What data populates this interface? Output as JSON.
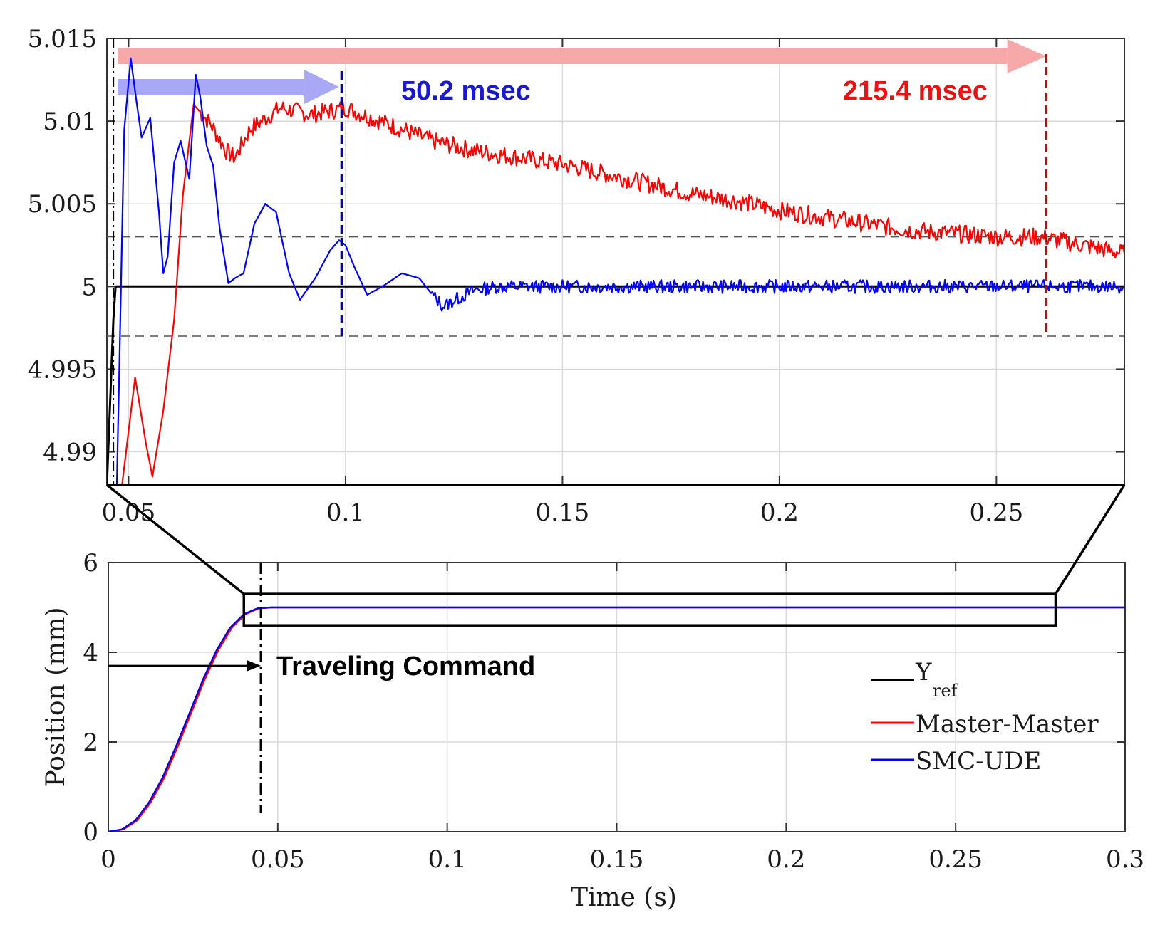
{
  "chart_data": [
    {
      "id": "zoom",
      "type": "line",
      "xlim": [
        0.045,
        0.2795
      ],
      "ylim": [
        4.988,
        5.015
      ],
      "x_ticks": [
        0.05,
        0.1,
        0.15,
        0.2,
        0.25
      ],
      "x_tick_labels": [
        "0.05",
        "0.1",
        "0.15",
        "0.2",
        "0.25"
      ],
      "y_ticks": [
        4.99,
        4.995,
        5,
        5.005,
        5.01,
        5.015
      ],
      "y_tick_labels": [
        "4.99",
        "4.995",
        "5",
        "5.005",
        "5.01",
        "5.015"
      ],
      "grid": true,
      "band_lines": [
        4.997,
        5.003
      ],
      "series": [
        {
          "name": "Yref",
          "color": "#000000",
          "x": [
            0.045,
            0.0465,
            0.047,
            0.048,
            0.2795
          ],
          "y": [
            4.988,
            4.998,
            5.0,
            5.0,
            5.0
          ]
        },
        {
          "name": "Master-Master",
          "color": "#ff0000",
          "x": [
            0.0485,
            0.0515,
            0.054,
            0.0555,
            0.058,
            0.0605,
            0.0625,
            0.065,
            0.069,
            0.0725,
            0.0745,
            0.078,
            0.085,
            0.092,
            0.1,
            0.11,
            0.12,
            0.13,
            0.14,
            0.15,
            0.16,
            0.17,
            0.18,
            0.19,
            0.2,
            0.21,
            0.22,
            0.23,
            0.24,
            0.25,
            0.26,
            0.27,
            0.2795
          ],
          "y": [
            4.988,
            4.9945,
            4.9905,
            4.9885,
            4.9925,
            4.998,
            5.0055,
            5.011,
            5.0098,
            5.0082,
            5.0078,
            5.0095,
            5.0108,
            5.0104,
            5.0108,
            5.0098,
            5.0088,
            5.0082,
            5.0078,
            5.0074,
            5.0068,
            5.0062,
            5.0056,
            5.0052,
            5.0046,
            5.0042,
            5.0038,
            5.0034,
            5.0032,
            5.003,
            5.003,
            5.0025,
            5.002
          ]
        },
        {
          "name": "SMC-UDE",
          "color": "#0000ff",
          "x": [
            0.0473,
            0.049,
            0.0505,
            0.0515,
            0.053,
            0.055,
            0.057,
            0.058,
            0.059,
            0.0605,
            0.062,
            0.064,
            0.0655,
            0.0665,
            0.068,
            0.0695,
            0.071,
            0.073,
            0.0745,
            0.0765,
            0.079,
            0.0815,
            0.084,
            0.087,
            0.0895,
            0.093,
            0.0965,
            0.0985,
            0.1,
            0.102,
            0.105,
            0.1085,
            0.113,
            0.117,
            0.12,
            0.1225,
            0.126,
            0.13,
            0.135,
            0.14,
            0.15,
            0.2795
          ],
          "y": [
            4.988,
            5.0095,
            5.0138,
            5.0118,
            5.009,
            5.0102,
            5.0045,
            5.0008,
            5.0018,
            5.0075,
            5.0088,
            5.0065,
            5.0128,
            5.0115,
            5.0085,
            5.0073,
            5.0035,
            5.0002,
            5.0005,
            5.0008,
            5.0038,
            5.005,
            5.0045,
            5.0008,
            4.9992,
            5.0005,
            5.0022,
            5.0028,
            5.0025,
            5.0012,
            4.9995,
            5.0,
            5.0008,
            5.0005,
            4.9995,
            4.9988,
            4.9993,
            4.9998,
            5.0,
            5.0,
            5.0,
            5.0
          ]
        }
      ],
      "markers": [
        {
          "x": 0.0465,
          "color": "#000000",
          "style": "dashdot"
        },
        {
          "x": 0.0991,
          "color": "#0a0a8a",
          "style": "dashed"
        },
        {
          "x": 0.2615,
          "color": "#a01818",
          "style": "dashed"
        }
      ],
      "annotations": [
        {
          "text": "50.2 msec",
          "color": "#1a1acc"
        },
        {
          "text": "215.4 msec",
          "color": "#ee1111"
        }
      ]
    },
    {
      "id": "main",
      "type": "line",
      "xlabel": "Time (s)",
      "ylabel": "Position (mm)",
      "xlim": [
        0,
        0.3
      ],
      "ylim": [
        0,
        6
      ],
      "x_ticks": [
        0,
        0.05,
        0.1,
        0.15,
        0.2,
        0.25,
        0.3
      ],
      "x_tick_labels": [
        "0",
        "0.05",
        "0.1",
        "0.15",
        "0.2",
        "0.25",
        "0.3"
      ],
      "y_ticks": [
        0,
        2,
        4,
        6
      ],
      "y_tick_labels": [
        "0",
        "2",
        "4",
        "6"
      ],
      "grid": true,
      "legend": {
        "position": "bottom-right",
        "entries": [
          "Y",
          "Master-Master",
          "SMC-UDE"
        ],
        "yref_sub": "ref"
      },
      "series": [
        {
          "name": "Yref",
          "color": "#000000",
          "x": [
            0,
            0.004,
            0.008,
            0.012,
            0.016,
            0.02,
            0.024,
            0.028,
            0.032,
            0.036,
            0.04,
            0.044,
            0.048,
            0.3
          ],
          "y": [
            0,
            0.05,
            0.25,
            0.65,
            1.2,
            1.9,
            2.65,
            3.4,
            4.05,
            4.55,
            4.85,
            4.98,
            5.0,
            5.0
          ]
        },
        {
          "name": "Master-Master",
          "color": "#ff0000",
          "x": [
            0,
            0.0045,
            0.0085,
            0.0125,
            0.0165,
            0.0205,
            0.0245,
            0.0285,
            0.0325,
            0.0365,
            0.0405,
            0.0445,
            0.0485,
            0.3
          ],
          "y": [
            0,
            0.05,
            0.25,
            0.65,
            1.2,
            1.9,
            2.65,
            3.4,
            4.05,
            4.55,
            4.85,
            4.98,
            5.0,
            5.0
          ]
        },
        {
          "name": "SMC-UDE",
          "color": "#0000ff",
          "x": [
            0,
            0.004,
            0.008,
            0.012,
            0.016,
            0.02,
            0.024,
            0.028,
            0.032,
            0.036,
            0.04,
            0.044,
            0.048,
            0.3
          ],
          "y": [
            0,
            0.05,
            0.25,
            0.65,
            1.2,
            1.9,
            2.65,
            3.4,
            4.05,
            4.55,
            4.85,
            4.98,
            5.0,
            5.0
          ]
        }
      ],
      "zoom_box": {
        "x": [
          0.04,
          0.2795
        ],
        "y": [
          4.6,
          5.3
        ]
      },
      "markers": [
        {
          "x": 0.045,
          "style": "dashdot"
        }
      ],
      "annotations": [
        {
          "text": "Traveling Command",
          "arrow_y": 3.7
        }
      ]
    }
  ]
}
